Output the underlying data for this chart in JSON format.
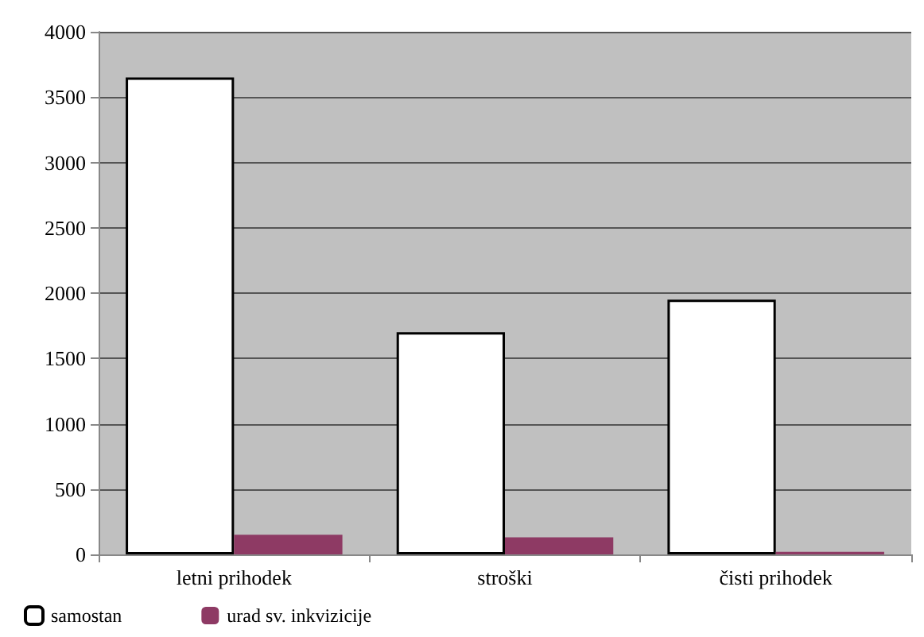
{
  "chart_data": {
    "type": "bar",
    "categories": [
      "letni prihodek",
      "stroški",
      "čisti prihodek"
    ],
    "series": [
      {
        "name": "samostan",
        "color": "#ffffff",
        "values": [
          3650,
          1700,
          1950
        ]
      },
      {
        "name": "urad sv. inkvizicije",
        "color": "#8e3a64",
        "values": [
          150,
          130,
          20
        ]
      }
    ],
    "ylim": [
      0,
      4000
    ],
    "yticks": [
      0,
      500,
      1000,
      1500,
      2000,
      2500,
      3000,
      3500,
      4000
    ],
    "grid": "y",
    "legend": "bottom left"
  }
}
